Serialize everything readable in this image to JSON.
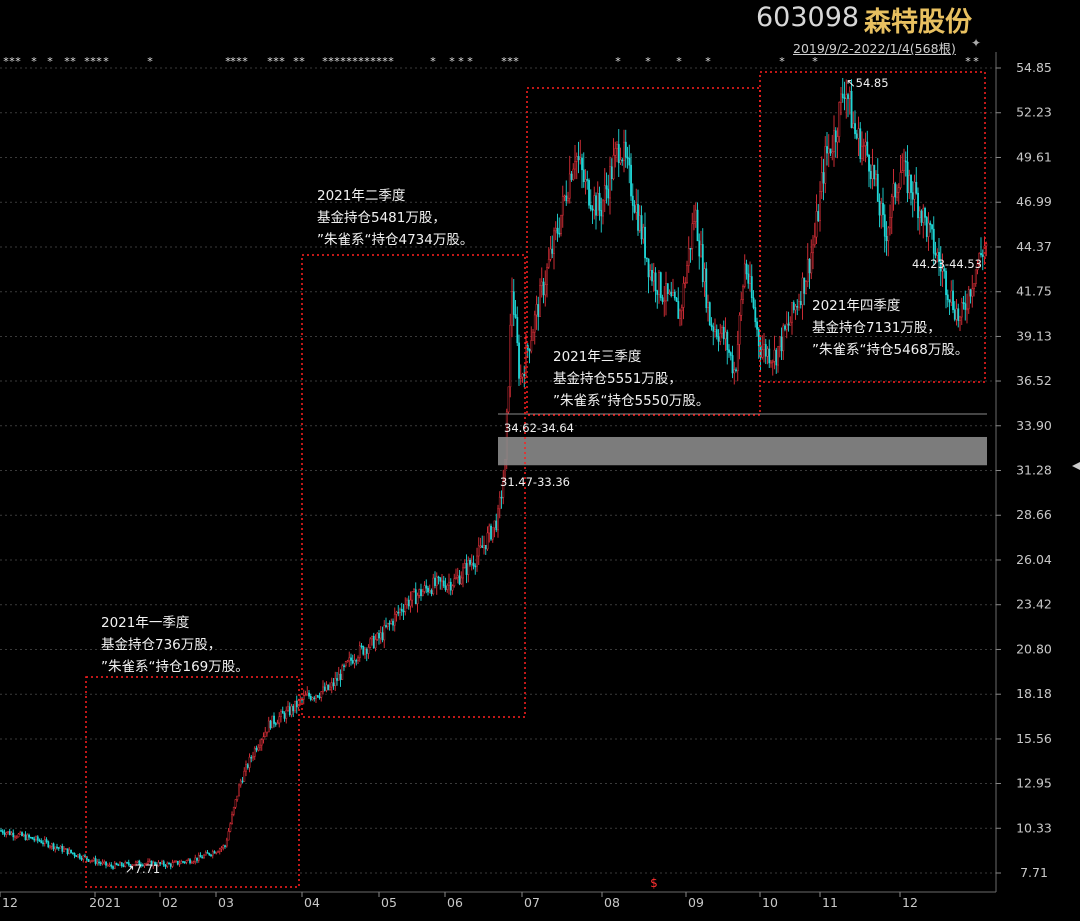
{
  "header": {
    "stock_code": "603098",
    "stock_name": "森特股份",
    "date_range": "2019/9/2-2022/1/4(568根)"
  },
  "chart_data": {
    "type": "candlestick",
    "title": "603098 森特股份",
    "ylim": [
      7.71,
      54.85
    ],
    "y_ticks": [
      "54.85",
      "52.23",
      "49.61",
      "46.99",
      "44.37",
      "41.75",
      "39.13",
      "36.52",
      "33.90",
      "31.28",
      "28.66",
      "26.04",
      "23.42",
      "20.80",
      "18.18",
      "15.56",
      "12.95",
      "10.33",
      "7.71"
    ],
    "x_ticks": [
      "12",
      "2021",
      "02",
      "03",
      "04",
      "05",
      "06",
      "07",
      "08",
      "09",
      "10",
      "11",
      "12"
    ],
    "price_path": [
      [
        0,
        10.2
      ],
      [
        40,
        9.6
      ],
      [
        80,
        8.7
      ],
      [
        110,
        8.1
      ],
      [
        140,
        8.3
      ],
      [
        170,
        8.2
      ],
      [
        200,
        8.6
      ],
      [
        225,
        9.3
      ],
      [
        240,
        13.0
      ],
      [
        255,
        15.0
      ],
      [
        270,
        16.5
      ],
      [
        290,
        17.2
      ],
      [
        305,
        18.0
      ],
      [
        330,
        18.5
      ],
      [
        355,
        20.5
      ],
      [
        380,
        21.5
      ],
      [
        405,
        23.5
      ],
      [
        430,
        24.5
      ],
      [
        455,
        24.8
      ],
      [
        480,
        26.5
      ],
      [
        498,
        28.5
      ],
      [
        505,
        31.5
      ],
      [
        512,
        42.0
      ],
      [
        520,
        36.5
      ],
      [
        530,
        39.0
      ],
      [
        545,
        42.5
      ],
      [
        560,
        46.0
      ],
      [
        575,
        50.0
      ],
      [
        585,
        48.0
      ],
      [
        600,
        46.5
      ],
      [
        620,
        50.5
      ],
      [
        635,
        47.0
      ],
      [
        650,
        43.0
      ],
      [
        665,
        41.5
      ],
      [
        680,
        40.5
      ],
      [
        695,
        46.5
      ],
      [
        710,
        40.0
      ],
      [
        725,
        39.0
      ],
      [
        735,
        37.0
      ],
      [
        745,
        43.5
      ],
      [
        760,
        38.5
      ],
      [
        775,
        38.0
      ],
      [
        790,
        40.0
      ],
      [
        805,
        42.5
      ],
      [
        815,
        45.0
      ],
      [
        825,
        49.5
      ],
      [
        835,
        51.0
      ],
      [
        845,
        54.0
      ],
      [
        855,
        51.0
      ],
      [
        870,
        49.5
      ],
      [
        885,
        45.0
      ],
      [
        900,
        49.0
      ],
      [
        915,
        47.5
      ],
      [
        930,
        45.0
      ],
      [
        945,
        42.5
      ],
      [
        960,
        40.0
      ],
      [
        975,
        43.0
      ],
      [
        985,
        44.5
      ]
    ],
    "annotations": [
      {
        "lines": [
          "2021年一季度",
          "基金持仓736万股，",
          "”朱雀系“持仓169万股。"
        ]
      },
      {
        "lines": [
          "2021年二季度",
          "基金持仓5481万股，",
          "”朱雀系“持仓4734万股。"
        ]
      },
      {
        "lines": [
          "2021年三季度",
          "基金持仓5551万股，",
          "”朱雀系“持仓5550万股。"
        ]
      },
      {
        "lines": [
          "2021年四季度",
          "基金持仓7131万股，",
          "”朱雀系“持仓5468万股。"
        ]
      }
    ],
    "price_labels": {
      "high": "54.85",
      "low": "7.71",
      "gap_top": "34.62-34.64",
      "gap_bottom": "31.47-33.36",
      "recent": "44.23-44.53"
    },
    "gap_zone": [
      31.47,
      33.36
    ],
    "colors": {
      "up": "#e0303a",
      "down": "#20d8d8",
      "box": "#ff2020",
      "gap": "#8a8a8a",
      "grid": "#3a3a3a"
    }
  }
}
